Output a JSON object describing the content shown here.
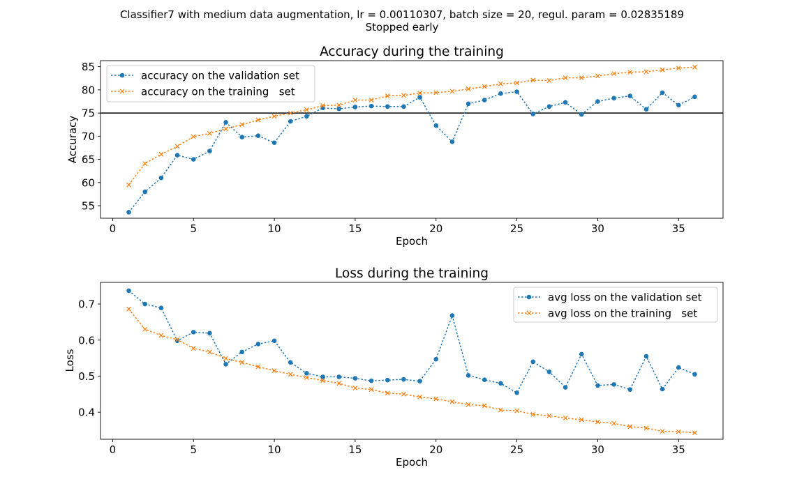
{
  "suptitle": {
    "line1": "Classifier7 with medium data augmentation, lr = 0.00110307, batch size = 20, regul. param = 0.02835189",
    "line2": "Stopped early"
  },
  "colors": {
    "validation": "#1f77b4",
    "training": "#ff7f0e",
    "reference_line": "#000000"
  },
  "chart_data": [
    {
      "type": "line",
      "title": "Accuracy during the training",
      "xlabel": "Epoch",
      "ylabel": "Accuracy",
      "xlim": [
        -0.75,
        37.75
      ],
      "ylim": [
        52.3,
        86.3
      ],
      "xticks": [
        0,
        5,
        10,
        15,
        20,
        25,
        30,
        35
      ],
      "yticks": [
        55,
        60,
        65,
        70,
        75,
        80,
        85
      ],
      "legend_position": "upper-left",
      "hline": 75,
      "x": [
        1,
        2,
        3,
        4,
        5,
        6,
        7,
        8,
        9,
        10,
        11,
        12,
        13,
        14,
        15,
        16,
        17,
        18,
        19,
        20,
        21,
        22,
        23,
        24,
        25,
        26,
        27,
        28,
        29,
        30,
        31,
        32,
        33,
        34,
        35,
        36
      ],
      "series": [
        {
          "name": "accuracy on the validation set",
          "marker": "circle",
          "color": "#1f77b4",
          "values": [
            53.6,
            58.0,
            61.0,
            65.9,
            65.0,
            66.8,
            73.0,
            69.8,
            70.1,
            68.6,
            73.2,
            74.3,
            76.1,
            75.9,
            76.3,
            76.5,
            76.4,
            76.4,
            78.4,
            72.3,
            68.8,
            77.0,
            77.8,
            79.2,
            79.6,
            74.8,
            76.4,
            77.3,
            74.7,
            77.5,
            78.2,
            78.7,
            75.8,
            79.4,
            76.7,
            78.5
          ]
        },
        {
          "name": "accuracy on the training   set",
          "marker": "x",
          "color": "#ff7f0e",
          "values": [
            59.5,
            64.1,
            66.1,
            67.8,
            69.9,
            70.6,
            71.6,
            72.5,
            73.5,
            74.3,
            75.0,
            75.7,
            76.6,
            76.7,
            77.8,
            77.8,
            78.7,
            78.8,
            79.3,
            79.4,
            79.7,
            80.2,
            80.7,
            81.3,
            81.5,
            82.1,
            82.0,
            82.6,
            82.6,
            83.0,
            83.5,
            83.8,
            83.9,
            84.3,
            84.7,
            84.9
          ]
        }
      ]
    },
    {
      "type": "line",
      "title": "Loss during the training",
      "xlabel": "Epoch",
      "ylabel": "Loss",
      "xlim": [
        -0.75,
        37.75
      ],
      "ylim": [
        0.325,
        0.76
      ],
      "xticks": [
        0,
        5,
        10,
        15,
        20,
        25,
        30,
        35
      ],
      "yticks": [
        0.4,
        0.5,
        0.6,
        0.7
      ],
      "legend_position": "upper-right",
      "x": [
        1,
        2,
        3,
        4,
        5,
        6,
        7,
        8,
        9,
        10,
        11,
        12,
        13,
        14,
        15,
        16,
        17,
        18,
        19,
        20,
        21,
        22,
        23,
        24,
        25,
        26,
        27,
        28,
        29,
        30,
        31,
        32,
        33,
        34,
        35,
        36
      ],
      "series": [
        {
          "name": "avg loss on the validation set",
          "marker": "circle",
          "color": "#1f77b4",
          "values": [
            0.737,
            0.7,
            0.689,
            0.598,
            0.622,
            0.619,
            0.533,
            0.567,
            0.589,
            0.598,
            0.538,
            0.508,
            0.498,
            0.498,
            0.494,
            0.487,
            0.489,
            0.491,
            0.486,
            0.547,
            0.668,
            0.502,
            0.49,
            0.48,
            0.454,
            0.54,
            0.512,
            0.469,
            0.561,
            0.474,
            0.477,
            0.463,
            0.555,
            0.464,
            0.524,
            0.505
          ]
        },
        {
          "name": "avg loss on the training   set",
          "marker": "x",
          "color": "#ff7f0e",
          "values": [
            0.686,
            0.63,
            0.613,
            0.601,
            0.577,
            0.567,
            0.549,
            0.538,
            0.526,
            0.515,
            0.505,
            0.496,
            0.488,
            0.48,
            0.467,
            0.463,
            0.453,
            0.45,
            0.442,
            0.437,
            0.429,
            0.421,
            0.418,
            0.406,
            0.404,
            0.394,
            0.39,
            0.384,
            0.379,
            0.373,
            0.369,
            0.36,
            0.356,
            0.347,
            0.346,
            0.343
          ]
        }
      ]
    }
  ]
}
